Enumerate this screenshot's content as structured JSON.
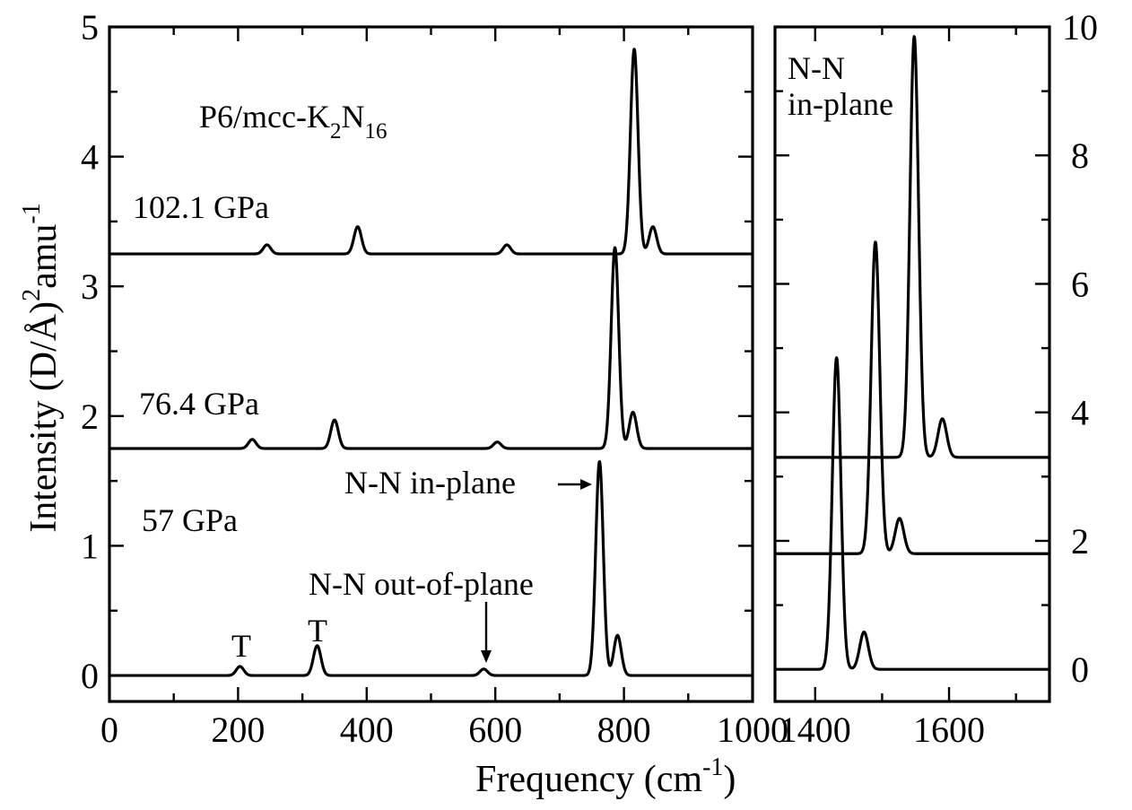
{
  "chart_data": {
    "type": "line",
    "ylabel": {
      "base": "Intensity (D/Å)",
      "sup": "2",
      "tail": "amu",
      "sup2": "-1"
    },
    "xlabel": {
      "base": "Frequency (cm",
      "sup": "-1",
      "tail": ")"
    },
    "panels": [
      {
        "id": "left",
        "xlim": [
          0,
          1000
        ],
        "ylim": [
          -0.2,
          5
        ],
        "xticks": [
          0,
          200,
          400,
          600,
          800,
          1000
        ],
        "yticks": [
          0,
          1,
          2,
          3,
          4,
          5
        ],
        "series": [
          {
            "label": "57 GPa",
            "baseline": 0,
            "peaks": [
              {
                "x": 203,
                "h": 0.07
              },
              {
                "x": 323,
                "h": 0.23
              },
              {
                "x": 582,
                "h": 0.05
              },
              {
                "x": 762,
                "h": 1.65
              },
              {
                "x": 790,
                "h": 0.31
              }
            ]
          },
          {
            "label": "76.4 GPa",
            "baseline": 1.75,
            "peaks": [
              {
                "x": 222,
                "h": 0.07
              },
              {
                "x": 350,
                "h": 0.22
              },
              {
                "x": 603,
                "h": 0.05
              },
              {
                "x": 786,
                "h": 1.55
              },
              {
                "x": 814,
                "h": 0.28
              }
            ]
          },
          {
            "label": "102.1 GPa",
            "baseline": 3.25,
            "peaks": [
              {
                "x": 245,
                "h": 0.07
              },
              {
                "x": 386,
                "h": 0.21
              },
              {
                "x": 618,
                "h": 0.07
              },
              {
                "x": 816,
                "h": 1.58
              },
              {
                "x": 845,
                "h": 0.21
              }
            ]
          }
        ]
      },
      {
        "id": "right",
        "xlim": [
          1340,
          1750
        ],
        "ylim": [
          -0.5,
          10
        ],
        "xticks": [
          1400,
          1600
        ],
        "yticks": [
          0,
          2,
          4,
          6,
          8,
          10
        ],
        "series": [
          {
            "baseline": 0,
            "peaks": [
              {
                "x": 1432,
                "h": 4.85
              },
              {
                "x": 1473,
                "h": 0.58
              }
            ]
          },
          {
            "baseline": 1.8,
            "peaks": [
              {
                "x": 1490,
                "h": 4.85
              },
              {
                "x": 1526,
                "h": 0.55
              }
            ]
          },
          {
            "baseline": 3.3,
            "peaks": [
              {
                "x": 1548,
                "h": 6.55
              },
              {
                "x": 1590,
                "h": 0.6
              }
            ]
          }
        ]
      }
    ],
    "annotations": {
      "compound": {
        "base": "P6/mcc-K",
        "sub1": "2",
        "mid": "N",
        "sub2": "16"
      },
      "in_plane": "N-N in-plane",
      "out_of_plane": "N-N out-of-plane",
      "translation": "T",
      "right_title_1": "N-N",
      "right_title_2": "in-plane"
    }
  }
}
